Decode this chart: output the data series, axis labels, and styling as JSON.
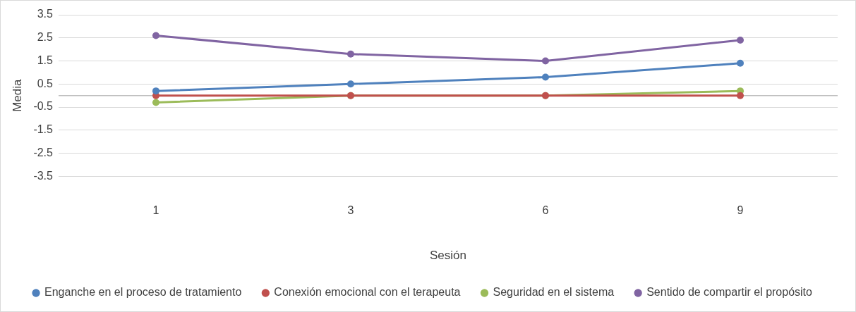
{
  "chart_data": {
    "type": "line",
    "xlabel": "Sesión",
    "ylabel": "Media",
    "categories": [
      "1",
      "3",
      "6",
      "9"
    ],
    "series": [
      {
        "name": "Enganche en el proceso de tratamiento",
        "color": "#4f81bd",
        "values": [
          0.2,
          0.5,
          0.8,
          1.4
        ]
      },
      {
        "name": "Conexión emocional con el terapeuta",
        "color": "#c0504d",
        "values": [
          0,
          0,
          0,
          0
        ]
      },
      {
        "name": "Seguridad en el sistema",
        "color": "#9bbb59",
        "values": [
          -0.3,
          0,
          0,
          0.2
        ]
      },
      {
        "name": "Sentido de compartir el propósito",
        "color": "#8064a2",
        "values": [
          2.6,
          1.8,
          1.5,
          2.4
        ]
      }
    ],
    "ylim": [
      -3.5,
      3.5
    ],
    "yticks": [
      -3.5,
      -2.5,
      -1.5,
      -0.5,
      0.5,
      1.5,
      2.5,
      3.5
    ],
    "ref_lines": [
      {
        "axis": "y",
        "value": 0,
        "color": "#bfbfbf"
      }
    ],
    "grid": "y",
    "legend": "bottom",
    "marker": "circle",
    "line_style": "solid"
  }
}
